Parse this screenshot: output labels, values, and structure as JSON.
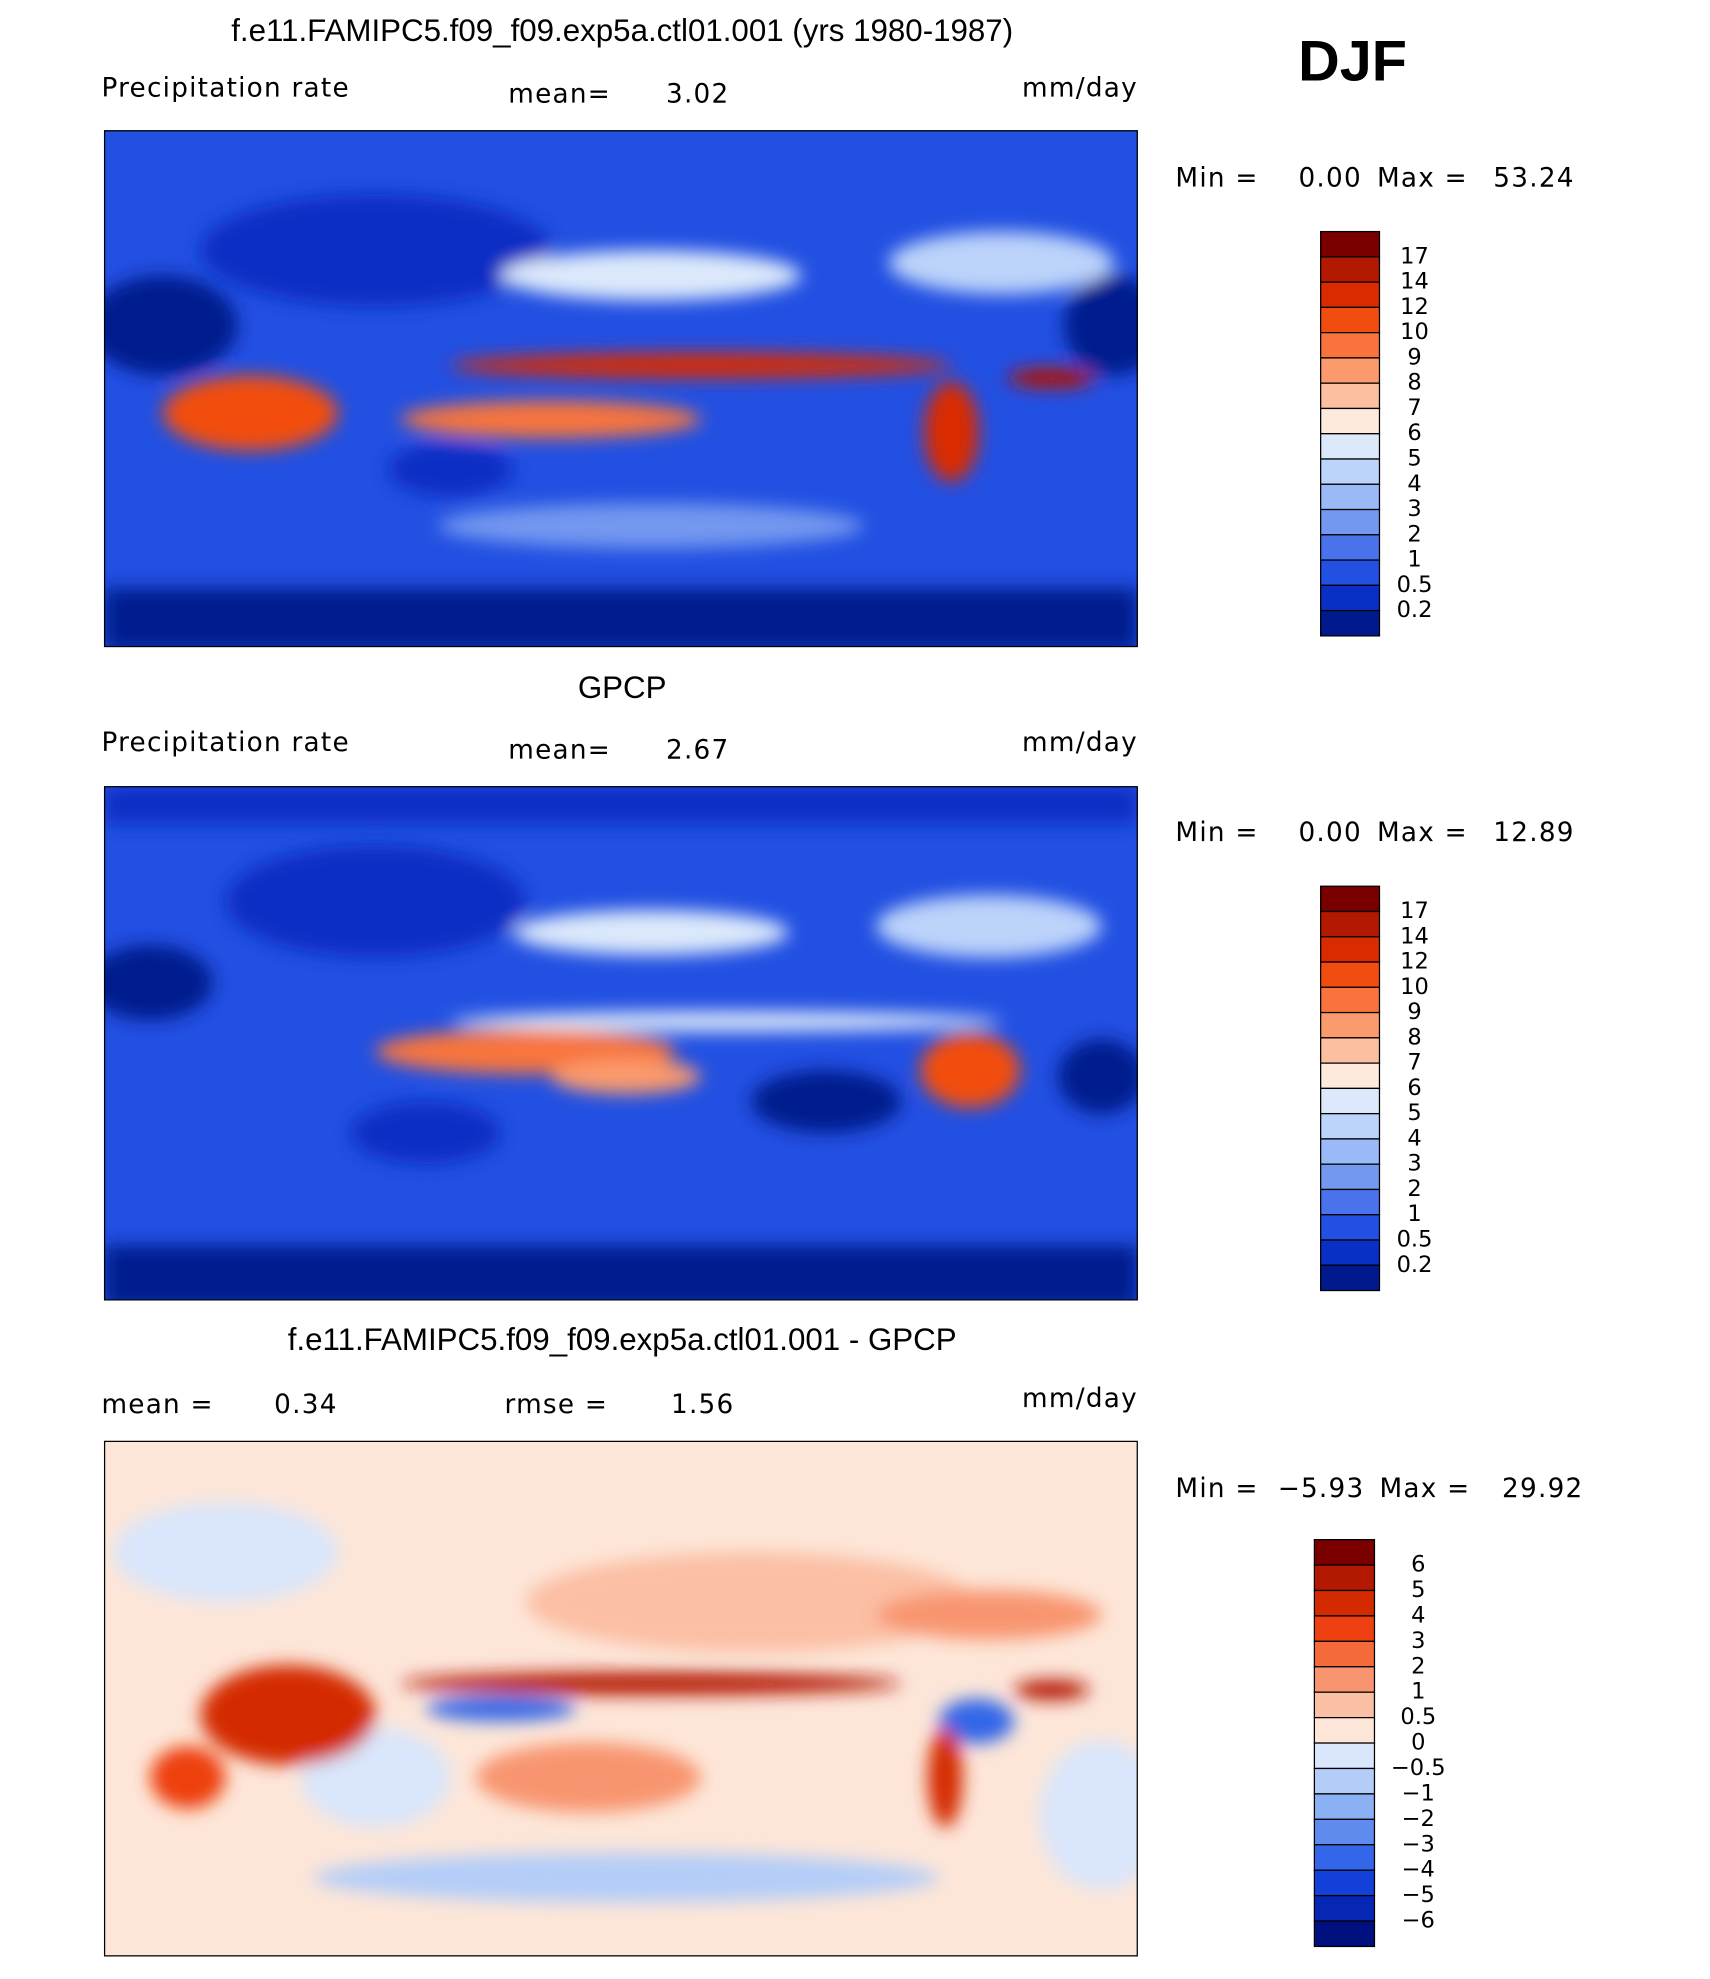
{
  "season": "DJF",
  "panels": [
    {
      "title": "f.e11.FAMIPC5.f09_f09.exp5a.ctl01.001 (yrs 1980-1987)",
      "left_label": "Precipitation rate",
      "stat1_label": "mean=",
      "stat1_value": "3.02",
      "units": "mm/day",
      "min_label": "Min =",
      "min_value": "0.00",
      "max_label": "Max =",
      "max_value": "53.24",
      "colorbar": {
        "labels": [
          "17",
          "14",
          "12",
          "10",
          "9",
          "8",
          "7",
          "6",
          "5",
          "4",
          "3",
          "2",
          "1",
          "0.5",
          "0.2"
        ],
        "colors": [
          "#7a0000",
          "#b31800",
          "#d92a00",
          "#f24d10",
          "#f8743c",
          "#fb9a6c",
          "#fcc0a0",
          "#feeadc",
          "#dce9fb",
          "#bcd3fa",
          "#99baf6",
          "#7398f0",
          "#4a72ea",
          "#2250e2",
          "#0a2fc4",
          "#001a8e"
        ]
      }
    },
    {
      "title": "GPCP",
      "left_label": "Precipitation rate",
      "stat1_label": "mean=",
      "stat1_value": "2.67",
      "units": "mm/day",
      "min_label": "Min =",
      "min_value": "0.00",
      "max_label": "Max =",
      "max_value": "12.89",
      "colorbar": {
        "labels": [
          "17",
          "14",
          "12",
          "10",
          "9",
          "8",
          "7",
          "6",
          "5",
          "4",
          "3",
          "2",
          "1",
          "0.5",
          "0.2"
        ],
        "colors": [
          "#7a0000",
          "#b31800",
          "#d92a00",
          "#f24d10",
          "#f8743c",
          "#fb9a6c",
          "#fcc0a0",
          "#feeadc",
          "#dce9fb",
          "#bcd3fa",
          "#99baf6",
          "#7398f0",
          "#4a72ea",
          "#2250e2",
          "#0a2fc4",
          "#001a8e"
        ]
      }
    },
    {
      "title": "f.e11.FAMIPC5.f09_f09.exp5a.ctl01.001 - GPCP",
      "stat1_label": "mean =",
      "stat1_value": "0.34",
      "stat2_label": "rmse =",
      "stat2_value": "1.56",
      "units": "mm/day",
      "min_label": "Min =",
      "min_value": "−5.93",
      "max_label": "Max =",
      "max_value": "29.92",
      "colorbar": {
        "labels": [
          "6",
          "5",
          "4",
          "3",
          "2",
          "1",
          "0.5",
          "0",
          "−0.5",
          "−1",
          "−2",
          "−3",
          "−4",
          "−5",
          "−6"
        ],
        "colors": [
          "#7a0000",
          "#b31800",
          "#d42a00",
          "#ee4010",
          "#f46a3a",
          "#f89570",
          "#fbbfa4",
          "#fde6d8",
          "#d9e6fb",
          "#b4cdf8",
          "#8cb0f4",
          "#5f8bee",
          "#3366e8",
          "#1440da",
          "#0626b4",
          "#00107e"
        ]
      }
    }
  ]
}
